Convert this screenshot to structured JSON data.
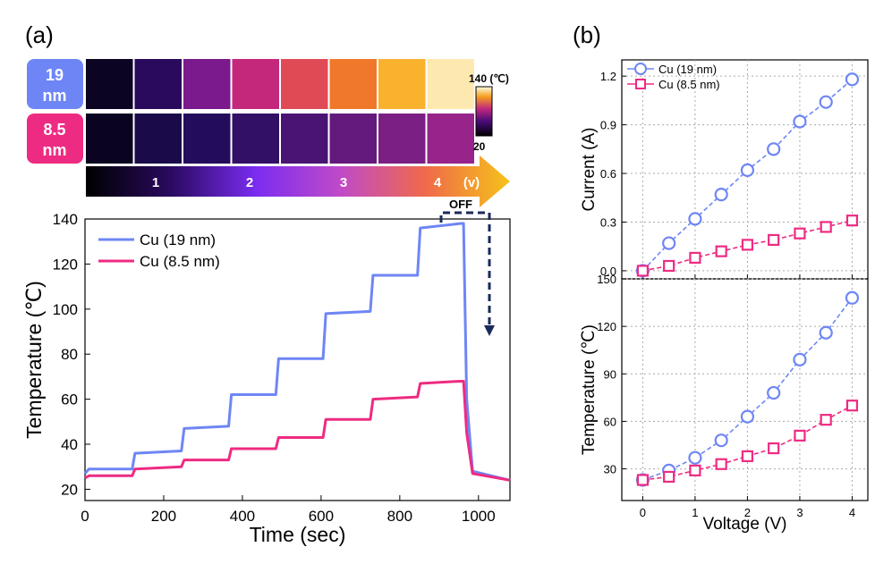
{
  "panel_labels": {
    "a": "(a)",
    "b": "(b)"
  },
  "thermal_images": {
    "rows": [
      {
        "label_line1": "19",
        "label_line2": "nm",
        "color": "#6e86f5",
        "tiles": [
          "#0b0523",
          "#2a0a5c",
          "#7a1a8c",
          "#c4287a",
          "#e04a55",
          "#f0782a",
          "#f9b12e",
          "#fde9b0"
        ]
      },
      {
        "label_line1": "8.5",
        "label_line2": "nm",
        "color": "#ee2b82",
        "tiles": [
          "#0a0420",
          "#1a0a4a",
          "#240c5c",
          "#321066",
          "#4a1474",
          "#641a7c",
          "#7c1f84",
          "#96248a"
        ]
      }
    ],
    "colorbar": {
      "max_label": "140 (℃)",
      "min_label": "20"
    },
    "voltage_arrow": {
      "ticks": [
        "1",
        "2",
        "3",
        "4"
      ],
      "unit": "(v)"
    }
  },
  "chart_data": [
    {
      "id": "temperature-vs-time",
      "type": "line",
      "xlabel": "Time (sec)",
      "ylabel": "Temperature (℃)",
      "xlim": [
        0,
        1080
      ],
      "ylim": [
        15,
        140
      ],
      "xticks": [
        0,
        200,
        400,
        600,
        800,
        1000
      ],
      "yticks": [
        20,
        40,
        60,
        80,
        100,
        120,
        140
      ],
      "legend": "top-left",
      "annotation": "OFF",
      "series": [
        {
          "name": "Cu (19 nm)",
          "color": "#6e86f5",
          "x": [
            0,
            10,
            30,
            120,
            127,
            245,
            252,
            365,
            372,
            485,
            492,
            605,
            612,
            725,
            732,
            845,
            852,
            955,
            962,
            970,
            985,
            1080
          ],
          "y": [
            27,
            29,
            29,
            29,
            36,
            37,
            47,
            48,
            62,
            62,
            78,
            78,
            98,
            99,
            115,
            115,
            136,
            138,
            138,
            60,
            28,
            24
          ]
        },
        {
          "name": "Cu (8.5 nm)",
          "color": "#ee2b82",
          "x": [
            0,
            10,
            30,
            120,
            127,
            245,
            252,
            365,
            372,
            485,
            492,
            605,
            612,
            725,
            732,
            845,
            852,
            955,
            962,
            970,
            985,
            1080
          ],
          "y": [
            25,
            26,
            26,
            26,
            29,
            30,
            33,
            33,
            38,
            38,
            43,
            43,
            51,
            51,
            60,
            61,
            67,
            68,
            68,
            45,
            27,
            24
          ]
        }
      ]
    },
    {
      "id": "current-vs-voltage",
      "type": "line",
      "xlabel": "",
      "ylabel": "Current (A)",
      "xlim": [
        -0.4,
        4.3
      ],
      "ylim": [
        -0.05,
        1.3
      ],
      "yticks": [
        0.0,
        0.3,
        0.6,
        0.9,
        1.2
      ],
      "legend": "top-left",
      "grid": true,
      "series": [
        {
          "name": "Cu (19 nm)",
          "color": "#6e86f5",
          "marker": "circle",
          "x": [
            0,
            0.5,
            1,
            1.5,
            2,
            2.5,
            3,
            3.5,
            4
          ],
          "y": [
            0.0,
            0.17,
            0.32,
            0.47,
            0.62,
            0.75,
            0.92,
            1.04,
            1.18
          ]
        },
        {
          "name": "Cu (8.5 nm)",
          "color": "#ee2b82",
          "marker": "square",
          "x": [
            0,
            0.5,
            1,
            1.5,
            2,
            2.5,
            3,
            3.5,
            4
          ],
          "y": [
            0.0,
            0.03,
            0.08,
            0.12,
            0.16,
            0.19,
            0.23,
            0.27,
            0.31
          ]
        }
      ]
    },
    {
      "id": "temperature-vs-voltage",
      "type": "line",
      "xlabel": "Voltage (V)",
      "ylabel": "Temperature (℃)",
      "xlim": [
        -0.4,
        4.3
      ],
      "ylim": [
        10,
        150
      ],
      "xticks": [
        0,
        1,
        2,
        3,
        4
      ],
      "yticks": [
        30,
        60,
        90,
        120,
        150
      ],
      "grid": true,
      "series": [
        {
          "name": "Cu (19 nm)",
          "color": "#6e86f5",
          "marker": "circle",
          "x": [
            0,
            0.5,
            1,
            1.5,
            2,
            2.5,
            3,
            3.5,
            4
          ],
          "y": [
            23,
            29,
            37,
            48,
            63,
            78,
            99,
            116,
            138
          ]
        },
        {
          "name": "Cu (8.5 nm)",
          "color": "#ee2b82",
          "marker": "square",
          "x": [
            0,
            0.5,
            1,
            1.5,
            2,
            2.5,
            3,
            3.5,
            4
          ],
          "y": [
            23,
            25,
            29,
            33,
            38,
            43,
            51,
            61,
            70
          ]
        }
      ]
    }
  ]
}
